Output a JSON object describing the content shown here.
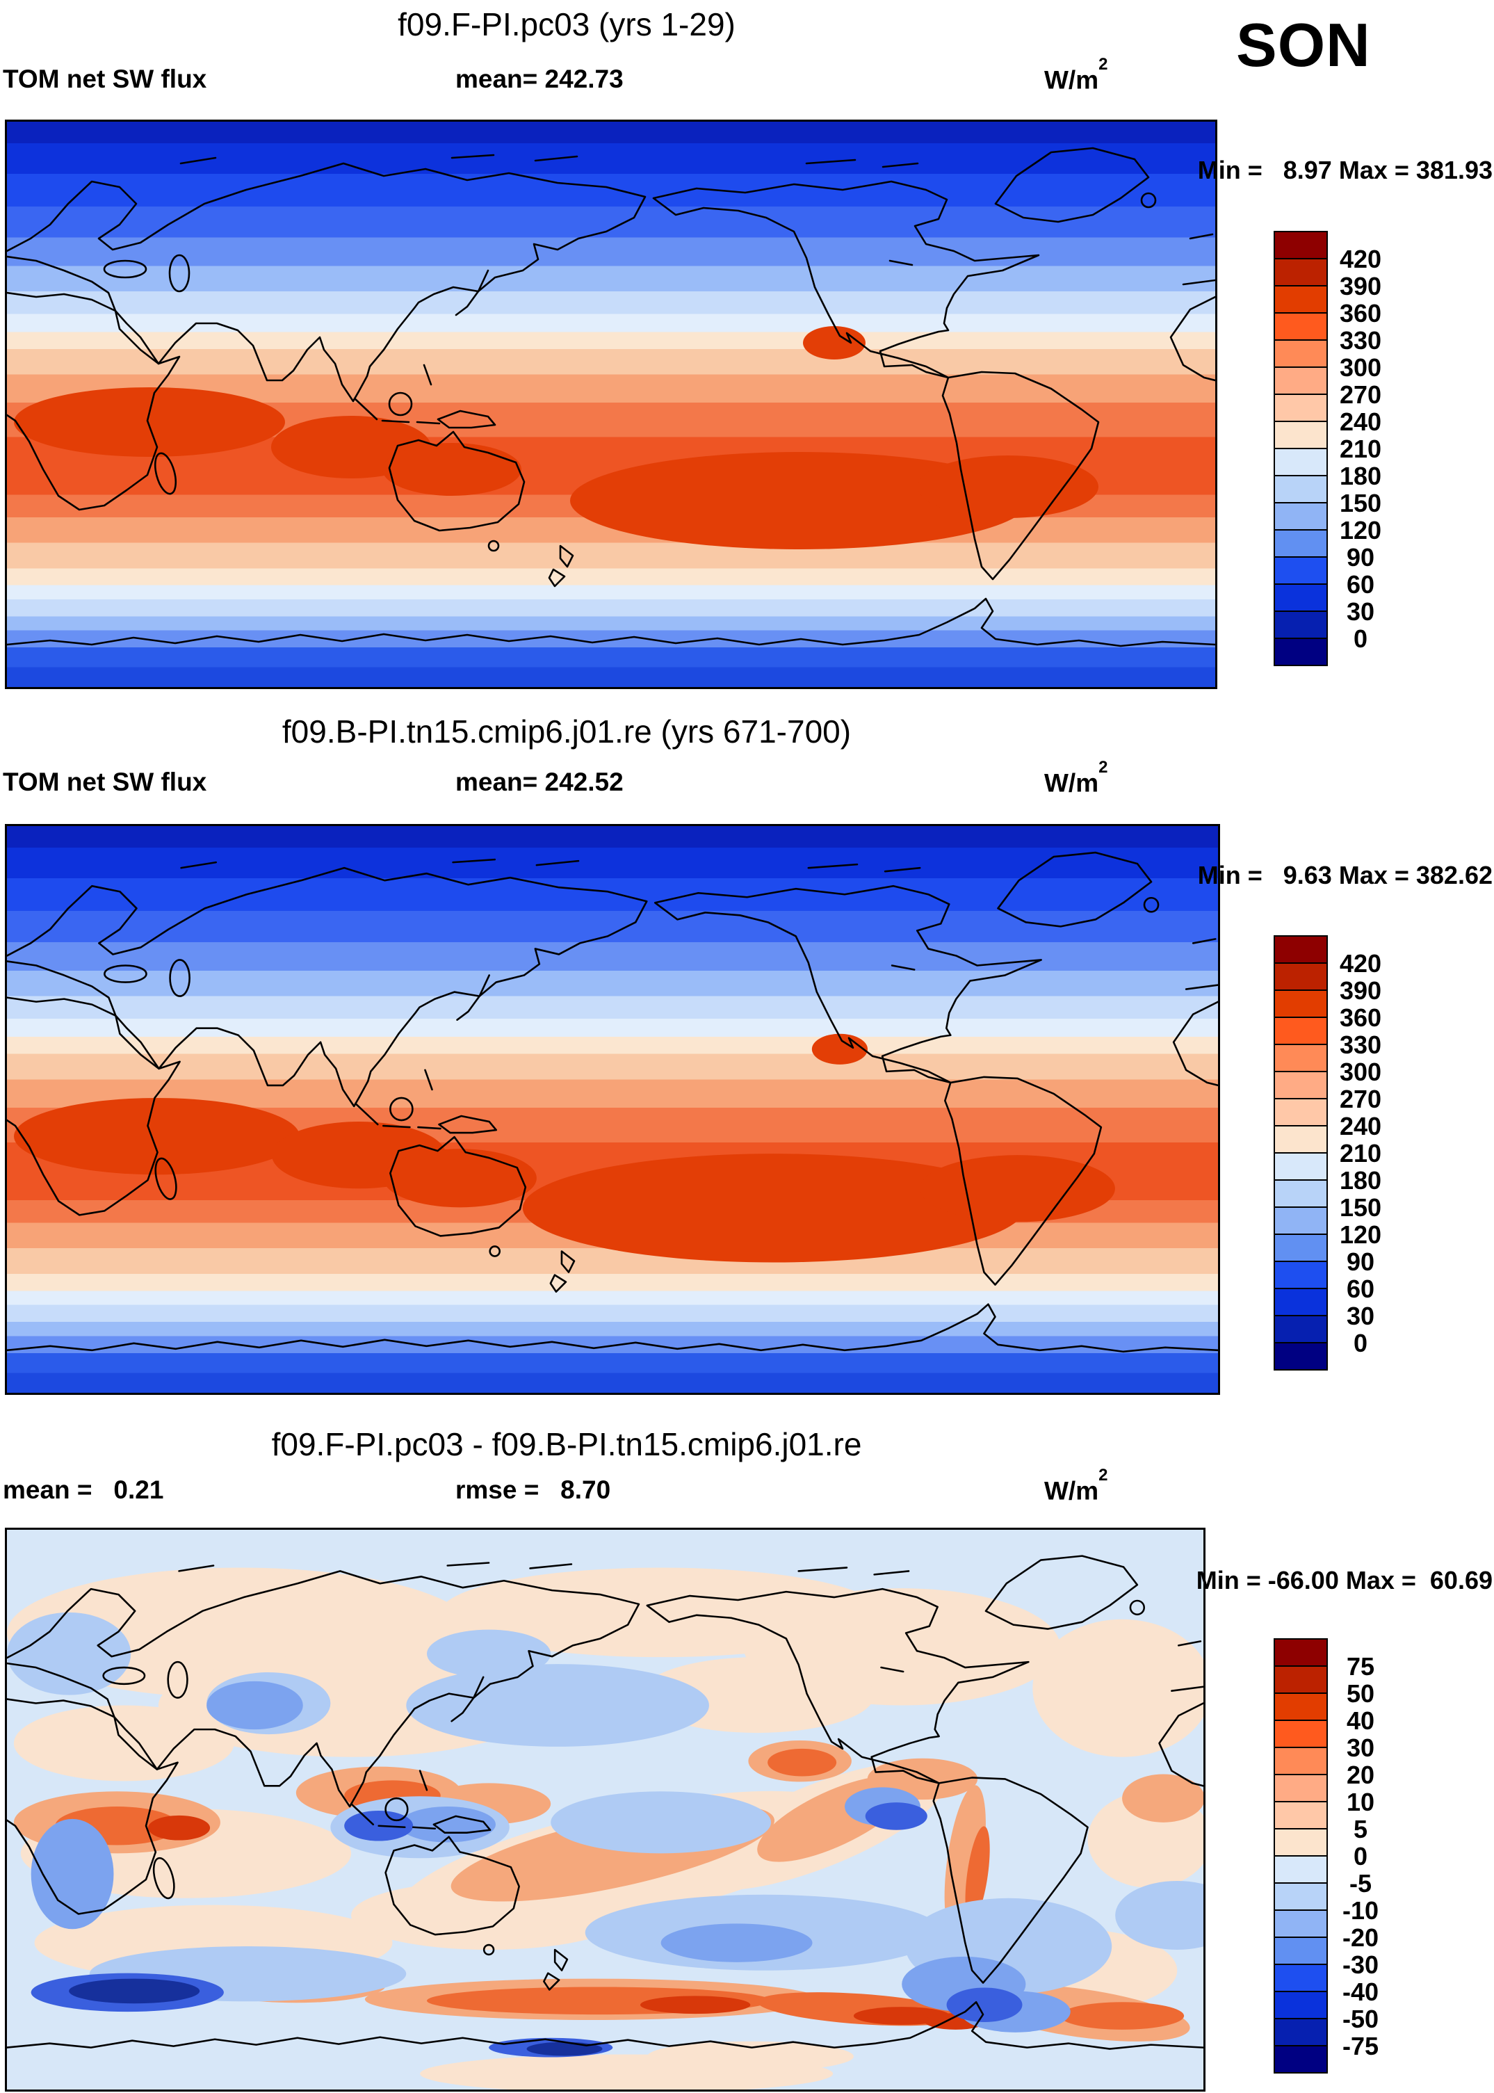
{
  "season": "SON",
  "figure_bg": "#FFFFFF",
  "units": {
    "base": "W/m",
    "sup": "2"
  },
  "colorbar_colors": [
    "#8E0000",
    "#BC2200",
    "#E23D00",
    "#FF5A1E",
    "#FF8A57",
    "#FFAB85",
    "#FFC8A8",
    "#FCE4CD",
    "#D8E8FA",
    "#B8D3F8",
    "#90B4F5",
    "#6190F2",
    "#1E4FF0",
    "#0A32DC",
    "#0620B0",
    "#000082"
  ],
  "panels": [
    {
      "title": "f09.F-PI.pc03 (yrs 1-29)",
      "stat_left": "TOM net SW flux",
      "stat_mid": "mean= 242.73",
      "minmax": "Min =   8.97 Max = 381.93",
      "colorbar_labels": [
        "420",
        "390",
        "360",
        "330",
        "300",
        "270",
        "240",
        "210",
        "180",
        "150",
        "120",
        "90",
        "60",
        "30",
        "0"
      ]
    },
    {
      "title": "f09.B-PI.tn15.cmip6.j01.re (yrs 671-700)",
      "stat_left": "TOM net SW flux",
      "stat_mid": "mean= 242.52",
      "minmax": "Min =   9.63 Max = 382.62",
      "colorbar_labels": [
        "420",
        "390",
        "360",
        "330",
        "300",
        "270",
        "240",
        "210",
        "180",
        "150",
        "120",
        "90",
        "60",
        "30",
        "0"
      ]
    },
    {
      "title": "f09.F-PI.pc03 - f09.B-PI.tn15.cmip6.j01.re",
      "stat_left": "mean =   0.21",
      "stat_mid": "rmse =   8.70",
      "minmax": "Min = -66.00 Max =  60.69",
      "colorbar_labels": [
        "75",
        "50",
        "40",
        "30",
        "20",
        "10",
        "5",
        "0",
        "-5",
        "-10",
        "-20",
        "-30",
        "-40",
        "-50",
        "-75"
      ]
    }
  ],
  "chart_data": [
    {
      "type": "heatmap",
      "title": "f09.F-PI.pc03 (yrs 1-29)",
      "variable": "TOM net SW flux",
      "season": "SON",
      "units": "W/m2",
      "mean": 242.73,
      "min": 8.97,
      "max": 381.93,
      "contour_levels": [
        0,
        30,
        60,
        90,
        120,
        150,
        180,
        210,
        240,
        270,
        300,
        330,
        360,
        390,
        420
      ],
      "legend_position": "right",
      "description": "Global filled-contour map, Pacific-centered; blue low flux at poles, orange-red maximum (300-360 W/m2) across the tropics and southern subtropical Pacific/Indian Ocean."
    },
    {
      "type": "heatmap",
      "title": "f09.B-PI.tn15.cmip6.j01.re (yrs 671-700)",
      "variable": "TOM net SW flux",
      "season": "SON",
      "units": "W/m2",
      "mean": 242.52,
      "min": 9.63,
      "max": 382.62,
      "contour_levels": [
        0,
        30,
        60,
        90,
        120,
        150,
        180,
        210,
        240,
        270,
        300,
        330,
        360,
        390,
        420
      ],
      "legend_position": "right",
      "description": "Same field for the coupled control case; nearly identical zonal structure to the first panel."
    },
    {
      "type": "heatmap",
      "title": "f09.F-PI.pc03 - f09.B-PI.tn15.cmip6.j01.re",
      "variable": "TOM net SW flux difference",
      "season": "SON",
      "units": "W/m2",
      "mean": 0.21,
      "rmse": 8.7,
      "min": -66.0,
      "max": 60.69,
      "contour_levels": [
        -75,
        -50,
        -40,
        -30,
        -20,
        -10,
        -5,
        0,
        5,
        10,
        20,
        30,
        40,
        50,
        75
      ],
      "legend_position": "right",
      "description": "Difference map: mostly small (+/-5 W/m2) values, red band along ~60S over the Southern Ocean, deep blue pockets near the Antarctic coast and tropical Pacific."
    }
  ]
}
